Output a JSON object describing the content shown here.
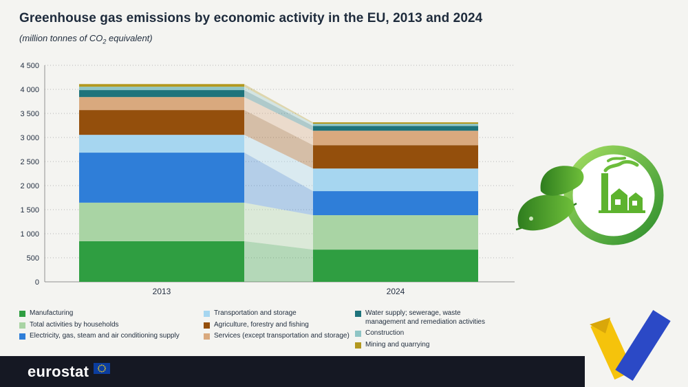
{
  "header": {
    "title": "Greenhouse gas emissions by economic activity in the EU, 2013 and 2024",
    "subtitle_pre": "(million tonnes of CO",
    "subtitle_sub": "2",
    "subtitle_post": " equivalent)"
  },
  "chart_data": {
    "type": "bar",
    "stacked": true,
    "title": "Greenhouse gas emissions by economic activity in the EU, 2013 and 2024",
    "unit": "million tonnes of CO2 equivalent",
    "categories": [
      "2013",
      "2024"
    ],
    "ylim": [
      0,
      4500
    ],
    "ytick_step": 500,
    "ytick_labels": [
      "0",
      "500",
      "1 000",
      "1 500",
      "2 000",
      "2 500",
      "3 000",
      "3 500",
      "4 000",
      "4 500"
    ],
    "grid": "dotted-horizontal",
    "legend_position": "bottom",
    "totals": [
      4110,
      3315
    ],
    "series": [
      {
        "name": "Manufacturing",
        "color": "#2f9e41",
        "values": [
          845,
          670
        ]
      },
      {
        "name": "Total activities by households",
        "color": "#a9d4a4",
        "values": [
          800,
          715
        ]
      },
      {
        "name": "Electricity, gas, steam and air conditioning supply",
        "color": "#2f7ed8",
        "values": [
          1040,
          500
        ]
      },
      {
        "name": "Transportation and storage",
        "color": "#a6d6f0",
        "values": [
          370,
          470
        ]
      },
      {
        "name": "Agriculture, forestry and fishing",
        "color": "#944f0c",
        "values": [
          515,
          485
        ]
      },
      {
        "name": "Services (except transportation and storage)",
        "color": "#d9a97e",
        "values": [
          270,
          300
        ]
      },
      {
        "name": "Water supply; sewerage, waste management and remediation activities",
        "color": "#1e737b",
        "values": [
          145,
          100
        ]
      },
      {
        "name": "Construction",
        "color": "#8fc5c5",
        "values": [
          70,
          45
        ]
      },
      {
        "name": "Mining and quarrying",
        "color": "#b2981f",
        "values": [
          55,
          30
        ]
      }
    ],
    "legend_columns": [
      [
        0,
        1,
        2
      ],
      [
        3,
        4,
        5
      ],
      [
        6,
        7,
        8
      ]
    ]
  },
  "footer": {
    "brand": "eurostat"
  },
  "icons": {
    "eu_flag": "eu-flag-icon",
    "eco_badge": "eco-factory-badge-icon",
    "ribbon": "eu-ribbon-decoration-icon"
  }
}
